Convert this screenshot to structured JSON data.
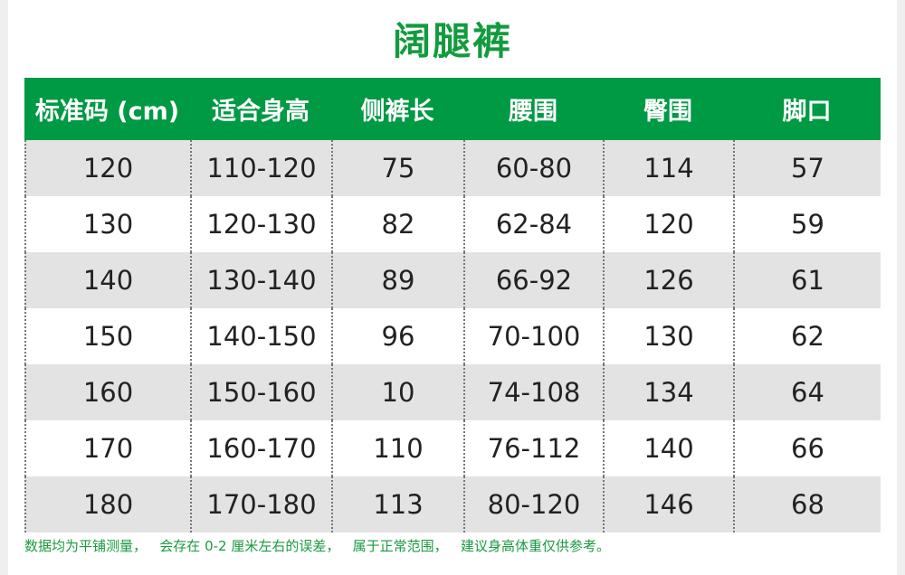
{
  "title": "阔腿裤",
  "colors": {
    "header": "#009944",
    "title": "#129b3e",
    "row_alt": "#e3e3e3"
  },
  "columns": [
    "标准码 (cm)",
    "适合身高",
    "侧裤长",
    "腰围",
    "臀围",
    "脚口"
  ],
  "rows": [
    [
      "120",
      "110-120",
      "75",
      "60-80",
      "114",
      "57"
    ],
    [
      "130",
      "120-130",
      "82",
      "62-84",
      "120",
      "59"
    ],
    [
      "140",
      "130-140",
      "89",
      "66-92",
      "126",
      "61"
    ],
    [
      "150",
      "140-150",
      "96",
      "70-100",
      "130",
      "62"
    ],
    [
      "160",
      "150-160",
      "10",
      "74-108",
      "134",
      "64"
    ],
    [
      "170",
      "160-170",
      "110",
      "76-112",
      "140",
      "66"
    ],
    [
      "180",
      "170-180",
      "113",
      "80-120",
      "146",
      "68"
    ]
  ],
  "note": "数据均为平铺测量，   会存在 0-2 厘米左右的误差，   属于正常范围，   建议身高体重仅供参考。"
}
